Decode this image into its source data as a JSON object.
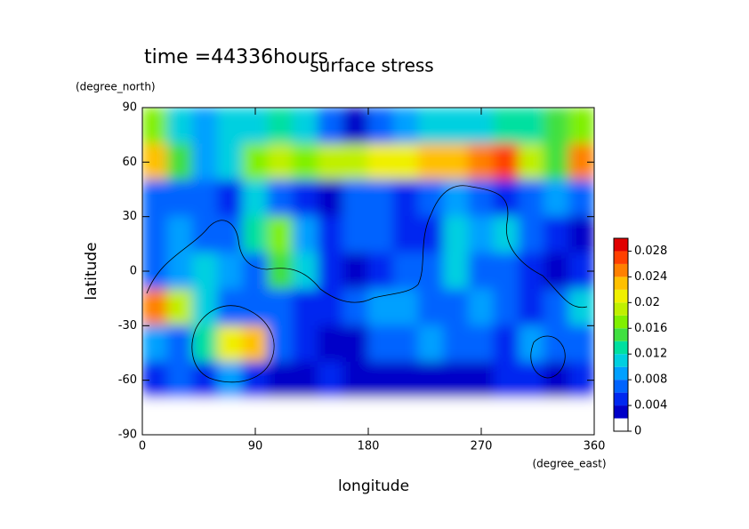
{
  "chart_data": {
    "type": "contour",
    "title": "time =44336hours",
    "subtitle": "surface stress",
    "x_label": "longitude",
    "y_label": "latitude",
    "x_unit_label": "(degree_east)",
    "y_unit_label": "(degree_north)",
    "xlim": [
      0,
      360
    ],
    "ylim": [
      -90,
      90
    ],
    "xticks": [
      0,
      90,
      180,
      270,
      360
    ],
    "yticks": [
      -90,
      -60,
      -30,
      0,
      30,
      60,
      90
    ],
    "x": [
      10,
      30,
      50,
      70,
      90,
      110,
      130,
      150,
      170,
      190,
      210,
      230,
      250,
      270,
      290,
      310,
      330,
      350
    ],
    "y": [
      80,
      60,
      40,
      20,
      0,
      -20,
      -40,
      -60,
      -80
    ],
    "z": [
      [
        0.016,
        0.01,
        0.008,
        0.01,
        0.01,
        0.012,
        0.01,
        0.006,
        0.002,
        0.006,
        0.008,
        0.01,
        0.01,
        0.01,
        0.012,
        0.012,
        0.014,
        0.016
      ],
      [
        0.022,
        0.014,
        0.008,
        0.01,
        0.016,
        0.018,
        0.016,
        0.018,
        0.018,
        0.02,
        0.02,
        0.022,
        0.022,
        0.024,
        0.026,
        0.018,
        0.014,
        0.024
      ],
      [
        0.006,
        0.006,
        0.006,
        0.004,
        0.01,
        0.006,
        0.004,
        0.002,
        0.006,
        0.006,
        0.004,
        0.006,
        0.008,
        0.006,
        0.004,
        0.006,
        0.008,
        0.006
      ],
      [
        0.006,
        0.008,
        0.006,
        0.006,
        0.012,
        0.016,
        0.008,
        0.004,
        0.006,
        0.006,
        0.004,
        0.004,
        0.01,
        0.008,
        0.01,
        0.006,
        0.004,
        0.002
      ],
      [
        0.006,
        0.008,
        0.01,
        0.008,
        0.006,
        0.014,
        0.01,
        0.004,
        0.002,
        0.004,
        0.006,
        0.006,
        0.01,
        0.006,
        0.006,
        0.004,
        0.002,
        0.004
      ],
      [
        0.024,
        0.018,
        0.01,
        0.006,
        0.006,
        0.006,
        0.004,
        0.004,
        0.006,
        0.008,
        0.008,
        0.006,
        0.006,
        0.008,
        0.006,
        0.004,
        0.006,
        0.01
      ],
      [
        0.008,
        0.006,
        0.012,
        0.02,
        0.022,
        0.006,
        0.004,
        0.002,
        0.002,
        0.006,
        0.006,
        0.008,
        0.006,
        0.006,
        0.004,
        0.008,
        0.006,
        0.006
      ],
      [
        0.004,
        0.006,
        0.004,
        0.008,
        0.004,
        0.002,
        0.002,
        0.004,
        0.002,
        0.002,
        0.002,
        0.002,
        0.002,
        0.002,
        0.004,
        0.004,
        0.002,
        0.004
      ],
      [
        0,
        0,
        0,
        0,
        0,
        0,
        0,
        0,
        0,
        0,
        0,
        0,
        0,
        0,
        0,
        0,
        0,
        0
      ]
    ],
    "levels": [
      0,
      0.002,
      0.004,
      0.006,
      0.008,
      0.01,
      0.012,
      0.014,
      0.016,
      0.018,
      0.02,
      0.022,
      0.024,
      0.026,
      0.028,
      0.03
    ],
    "colors": [
      "#ffffff",
      "#0000c8",
      "#0028f0",
      "#0064ff",
      "#00a0ff",
      "#00d0e0",
      "#00e0a0",
      "#40e040",
      "#80f000",
      "#c0f000",
      "#f0f000",
      "#ffc000",
      "#ff8000",
      "#ff4000",
      "#e00000"
    ],
    "colorbar_ticks": [
      0,
      0.004,
      0.008,
      0.012,
      0.016,
      0.02,
      0.024,
      0.028
    ]
  }
}
